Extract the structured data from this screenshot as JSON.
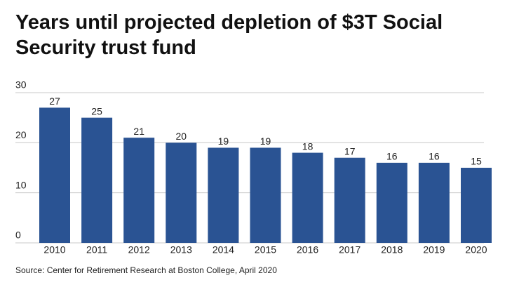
{
  "chart_data": {
    "type": "bar",
    "title": "Years until projected depletion of $3T Social Security trust fund",
    "categories": [
      "2010",
      "2011",
      "2012",
      "2013",
      "2014",
      "2015",
      "2016",
      "2017",
      "2018",
      "2019",
      "2020"
    ],
    "values": [
      27,
      25,
      21,
      20,
      19,
      19,
      18,
      17,
      16,
      16,
      15
    ],
    "color": "#2a5393",
    "ylim": [
      0,
      30
    ],
    "yticks": [
      0,
      10,
      20,
      30
    ],
    "grid": true,
    "source": "Source: Center for Retirement Research at Boston College, April 2020"
  }
}
